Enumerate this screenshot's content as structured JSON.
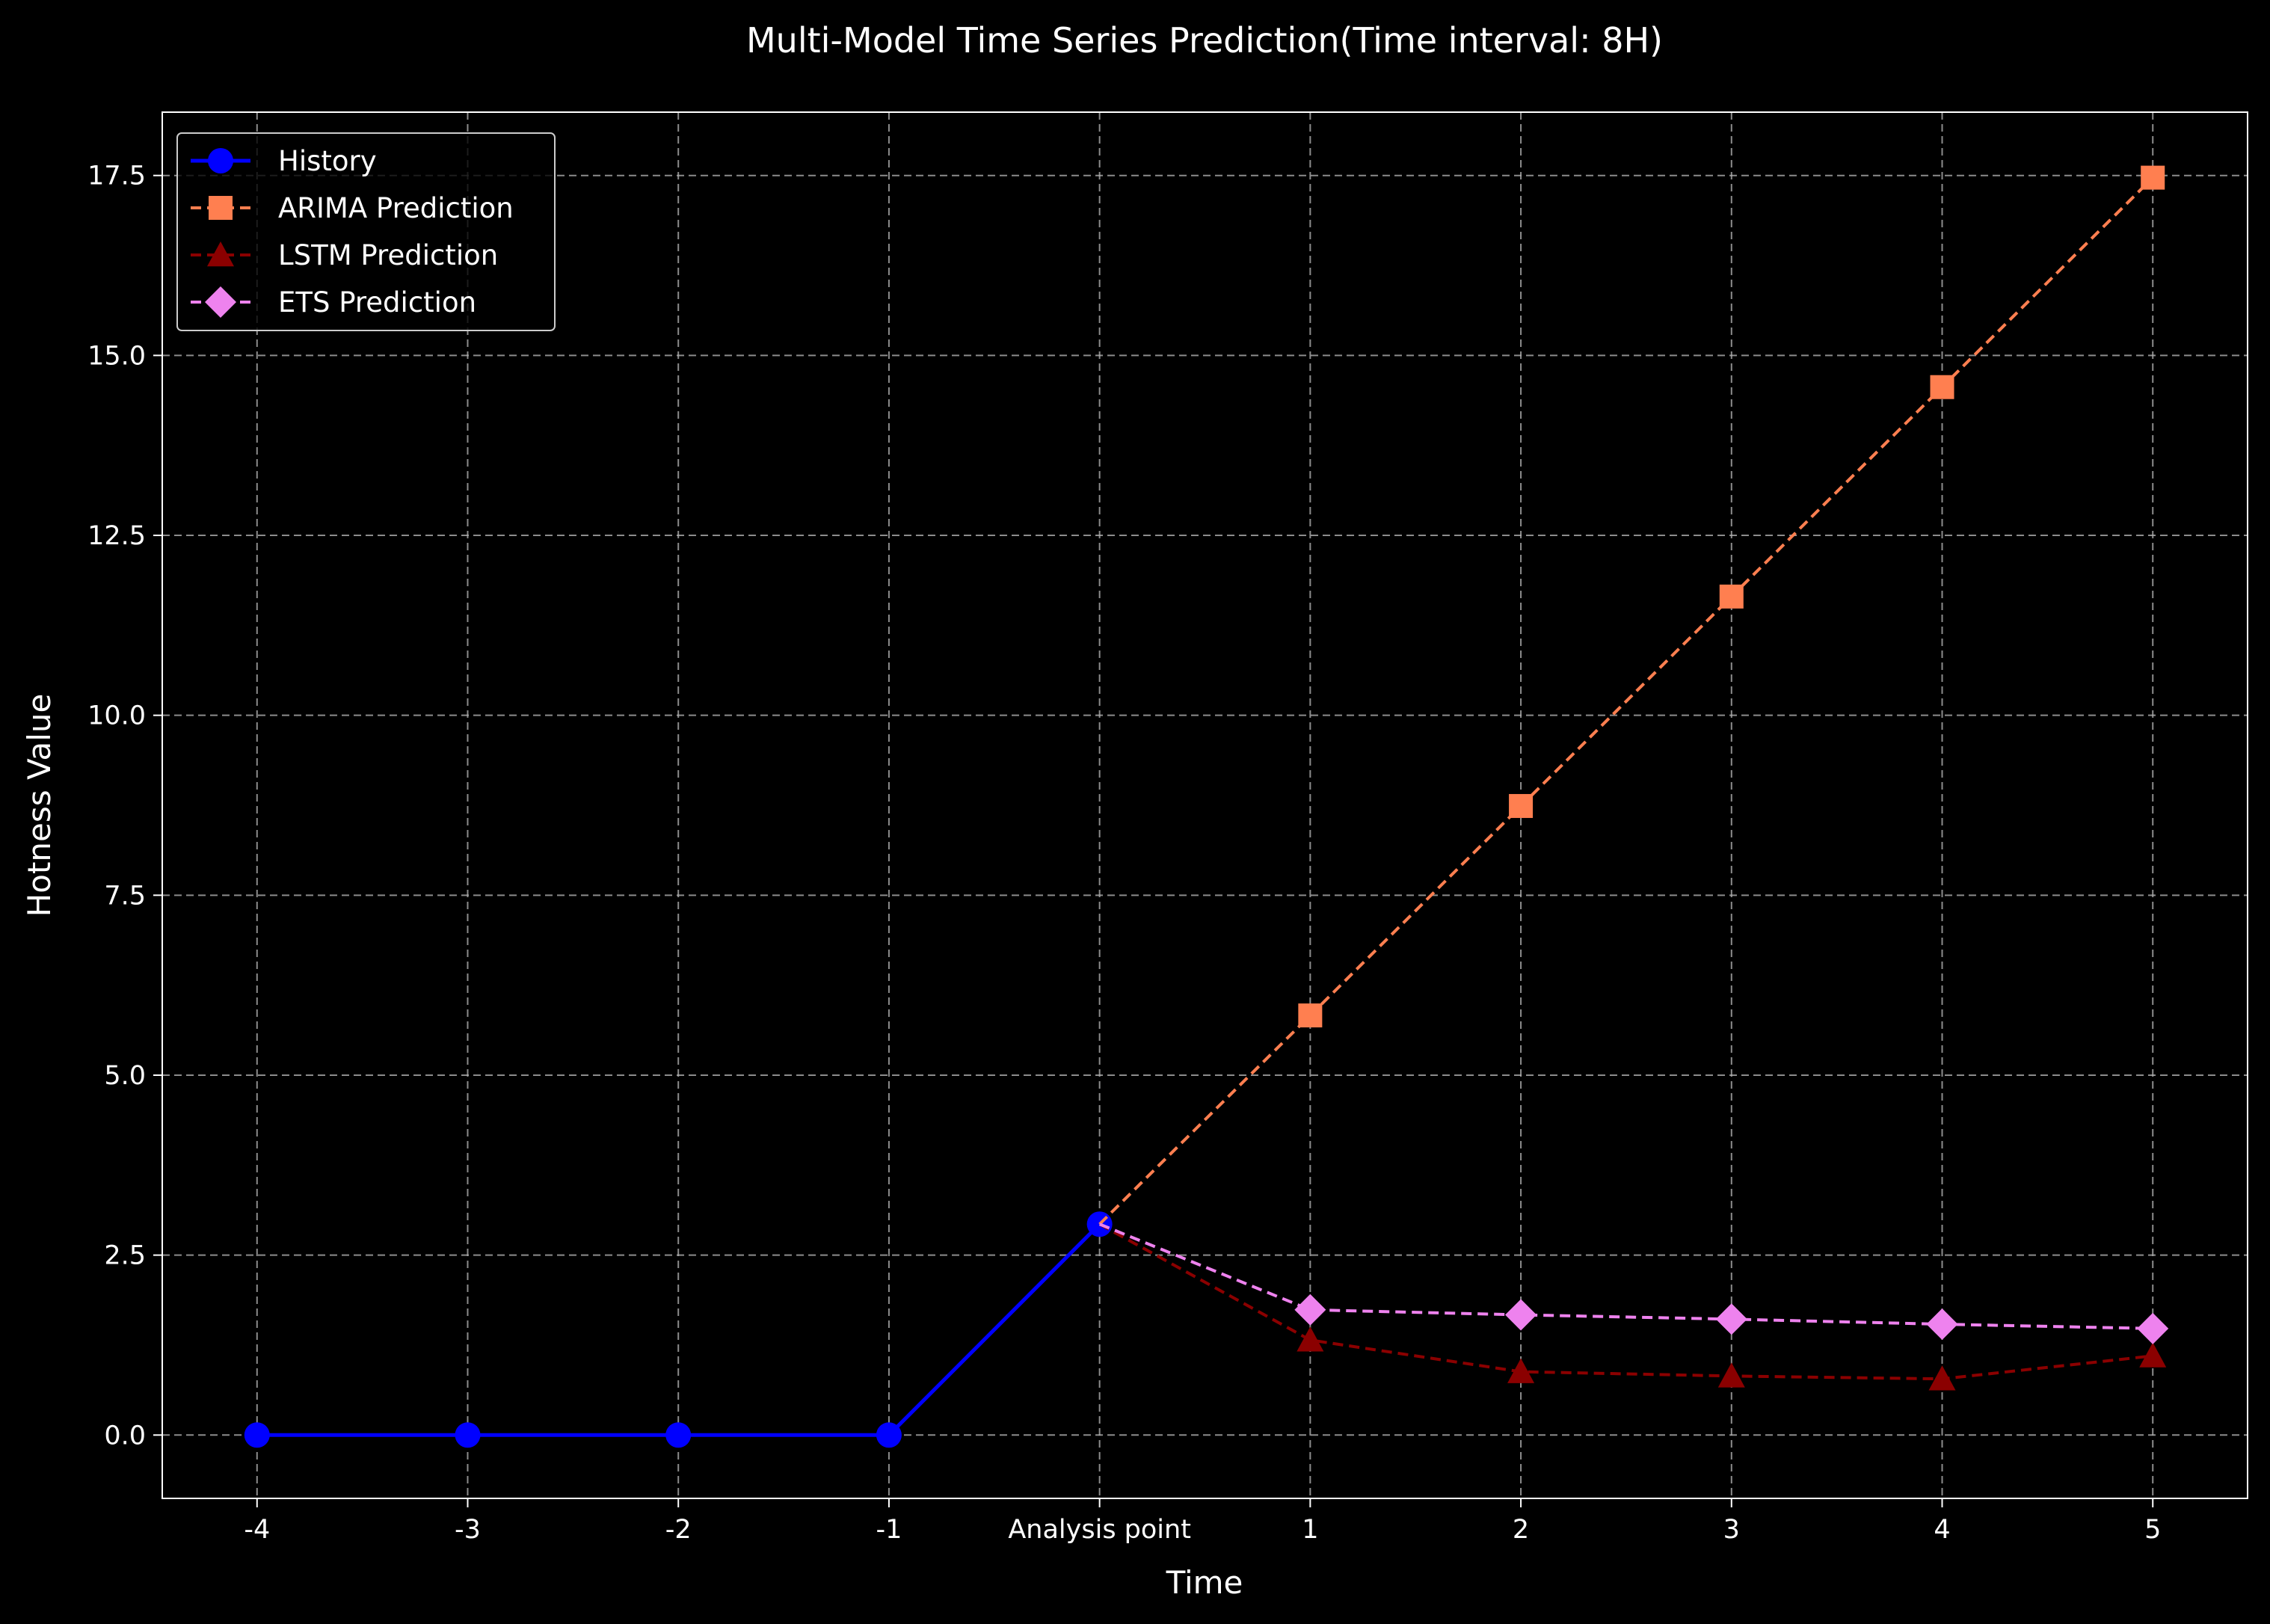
{
  "chart_data": {
    "type": "line",
    "title": "Multi-Model Time Series Prediction(Time interval: 8H)",
    "xlabel": "Time",
    "ylabel": "Hotness Value",
    "x_tick_labels": [
      "-4",
      "-3",
      "-2",
      "-1",
      "Analysis point",
      "1",
      "2",
      "3",
      "4",
      "5"
    ],
    "x_ticks": [
      -4,
      -3,
      -2,
      -1,
      0,
      1,
      2,
      3,
      4,
      5
    ],
    "xlim": [
      -4.45,
      5.45
    ],
    "ylim": [
      -0.88,
      18.38
    ],
    "y_ticks": [
      0.0,
      2.5,
      5.0,
      7.5,
      10.0,
      12.5,
      15.0,
      17.5
    ],
    "y_tick_labels": [
      "0.0",
      "2.5",
      "5.0",
      "7.5",
      "10.0",
      "12.5",
      "15.0",
      "17.5"
    ],
    "grid": true,
    "legend_position": "top-left",
    "series": [
      {
        "name": "History",
        "color": "#0000ff",
        "line": "solid",
        "marker": "circle",
        "x": [
          -4,
          -3,
          -2,
          -1,
          0
        ],
        "y": [
          0.0,
          0.0,
          0.0,
          0.0,
          2.93
        ]
      },
      {
        "name": "ARIMA Prediction",
        "color": "#ff7f50",
        "line": "dashed",
        "marker": "square",
        "x": [
          0,
          1,
          2,
          3,
          4,
          5
        ],
        "y": [
          2.93,
          5.83,
          8.74,
          11.65,
          14.56,
          17.47
        ]
      },
      {
        "name": "LSTM Prediction",
        "color": "#8b0000",
        "line": "dashed",
        "marker": "triangle",
        "x": [
          0,
          1,
          2,
          3,
          4,
          5
        ],
        "y": [
          2.93,
          1.32,
          0.88,
          0.82,
          0.78,
          1.1
        ]
      },
      {
        "name": "ETS Prediction",
        "color": "#ee82ee",
        "line": "dashed",
        "marker": "diamond",
        "x": [
          0,
          1,
          2,
          3,
          4,
          5
        ],
        "y": [
          2.93,
          1.74,
          1.67,
          1.61,
          1.54,
          1.48
        ]
      }
    ]
  }
}
